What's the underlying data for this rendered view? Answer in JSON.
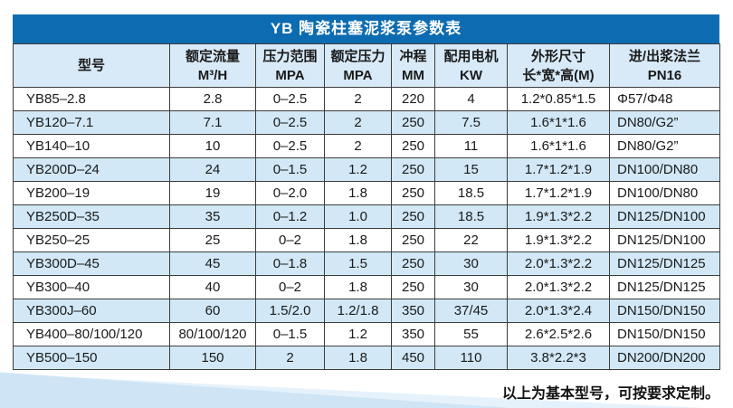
{
  "title": "YB 陶瓷柱塞泥浆泵参数表",
  "footer_note": "以上为基本型号，可按要求定制。",
  "colors": {
    "title_bar": "#0d6cb1",
    "header_bg": "#d8eaf7",
    "row_alt_bg": "#d2e8f6",
    "border": "#3d3d3d",
    "ribbon": "#cfe5f5",
    "ribbon_light": "#e6f2fb"
  },
  "table": {
    "columns": [
      {
        "line1": "型号",
        "line2": ""
      },
      {
        "line1": "额定流量",
        "line2": "M³/H"
      },
      {
        "line1": "压力范围",
        "line2": "MPA"
      },
      {
        "line1": "额定压力",
        "line2": "MPA"
      },
      {
        "line1": "冲程",
        "line2": "MM"
      },
      {
        "line1": "配用电机",
        "line2": "KW"
      },
      {
        "line1": "外形尺寸",
        "line2": "长*宽*高(M)"
      },
      {
        "line1": "进/出浆法兰",
        "line2": "PN16"
      }
    ],
    "rows": [
      [
        "YB85–2.8",
        "2.8",
        "0–2.5",
        "2",
        "220",
        "4",
        "1.2*0.85*1.5",
        "Φ57/Φ48"
      ],
      [
        "YB120–7.1",
        "7.1",
        "0–2.5",
        "2",
        "250",
        "7.5",
        "1.6*1*1.6",
        "DN80/G2”"
      ],
      [
        "YB140–10",
        "10",
        "0–2.5",
        "2",
        "250",
        "11",
        "1.6*1*1.6",
        "DN80/G2”"
      ],
      [
        "YB200D–24",
        "24",
        "0–1.5",
        "1.2",
        "250",
        "15",
        "1.7*1.2*1.9",
        "DN100/DN80"
      ],
      [
        "YB200–19",
        "19",
        "0–2.0",
        "1.8",
        "250",
        "18.5",
        "1.7*1.2*1.9",
        "DN100/DN80"
      ],
      [
        "YB250D–35",
        "35",
        "0–1.2",
        "1.0",
        "250",
        "18.5",
        "1.9*1.3*2.2",
        "DN125/DN100"
      ],
      [
        "YB250–25",
        "25",
        "0–2",
        "1.8",
        "250",
        "22",
        "1.9*1.3*2.2",
        "DN125/DN100"
      ],
      [
        "YB300D–45",
        "45",
        "0–1.8",
        "1.5",
        "250",
        "30",
        "2.0*1.3*2.2",
        "DN125/DN125"
      ],
      [
        "YB300–40",
        "40",
        "0–2",
        "1.8",
        "250",
        "30",
        "2.0*1.3*2.2",
        "DN125/DN125"
      ],
      [
        "YB300J–60",
        "60",
        "1.5/2.0",
        "1.2/1.8",
        "350",
        "37/45",
        "2.0*1.3*2.4",
        "DN150/DN150"
      ],
      [
        "YB400–80/100/120",
        "80/100/120",
        "0–1.5",
        "1.2",
        "350",
        "55",
        "2.6*2.5*2.6",
        "DN150/DN150"
      ],
      [
        "YB500–150",
        "150",
        "2",
        "1.8",
        "450",
        "110",
        "3.8*2.2*3",
        "DN200/DN200"
      ]
    ]
  }
}
